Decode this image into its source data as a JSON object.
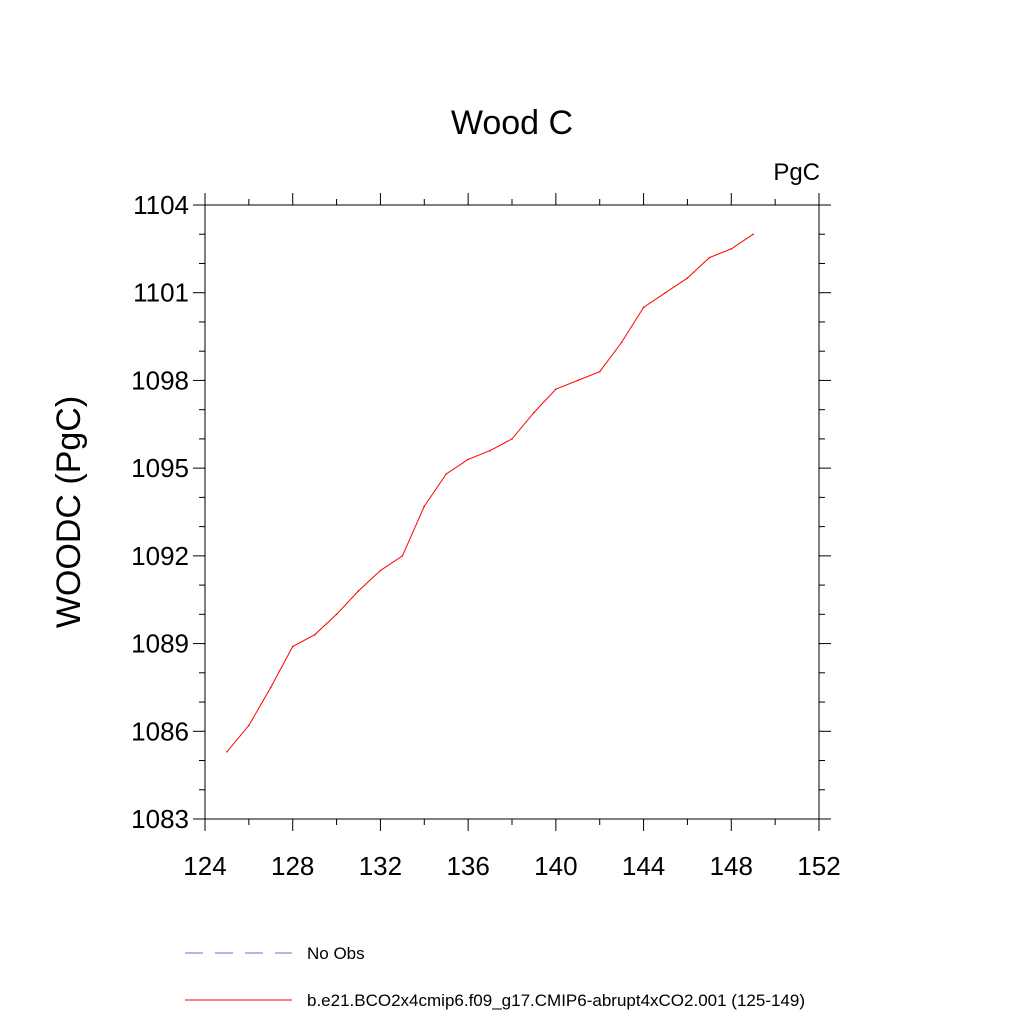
{
  "chart_data": {
    "type": "line",
    "title": "Wood C",
    "units_label": "PgC",
    "xlabel": "",
    "ylabel": "WOODC  (PgC)",
    "xlim": [
      124,
      152
    ],
    "ylim": [
      1083,
      1104
    ],
    "x_ticks": [
      124,
      128,
      132,
      136,
      140,
      144,
      148,
      152
    ],
    "y_ticks": [
      1083,
      1086,
      1089,
      1092,
      1095,
      1098,
      1101,
      1104
    ],
    "x_minor_step": 2,
    "y_minor_step": 1,
    "grid": false,
    "legend_position": "bottom",
    "series": [
      {
        "name": "No Obs",
        "color": "#6c6cc8",
        "style": "dashed",
        "x": [],
        "y": []
      },
      {
        "name": "b.e21.BCO2x4cmip6.f09_g17.CMIP6-abrupt4xCO2.001 (125-149)",
        "color": "#ff0000",
        "style": "solid",
        "x": [
          125,
          126,
          127,
          128,
          129,
          130,
          131,
          132,
          133,
          134,
          135,
          136,
          137,
          138,
          139,
          140,
          141,
          142,
          143,
          144,
          145,
          146,
          147,
          148,
          149
        ],
        "y": [
          1085.3,
          1086.2,
          1087.5,
          1088.9,
          1089.3,
          1090.0,
          1090.8,
          1091.5,
          1092.0,
          1093.7,
          1094.8,
          1095.3,
          1095.6,
          1096.0,
          1096.9,
          1097.7,
          1098.0,
          1098.3,
          1099.3,
          1100.5,
          1101.0,
          1101.5,
          1102.2,
          1102.5,
          1103.0
        ]
      }
    ]
  }
}
